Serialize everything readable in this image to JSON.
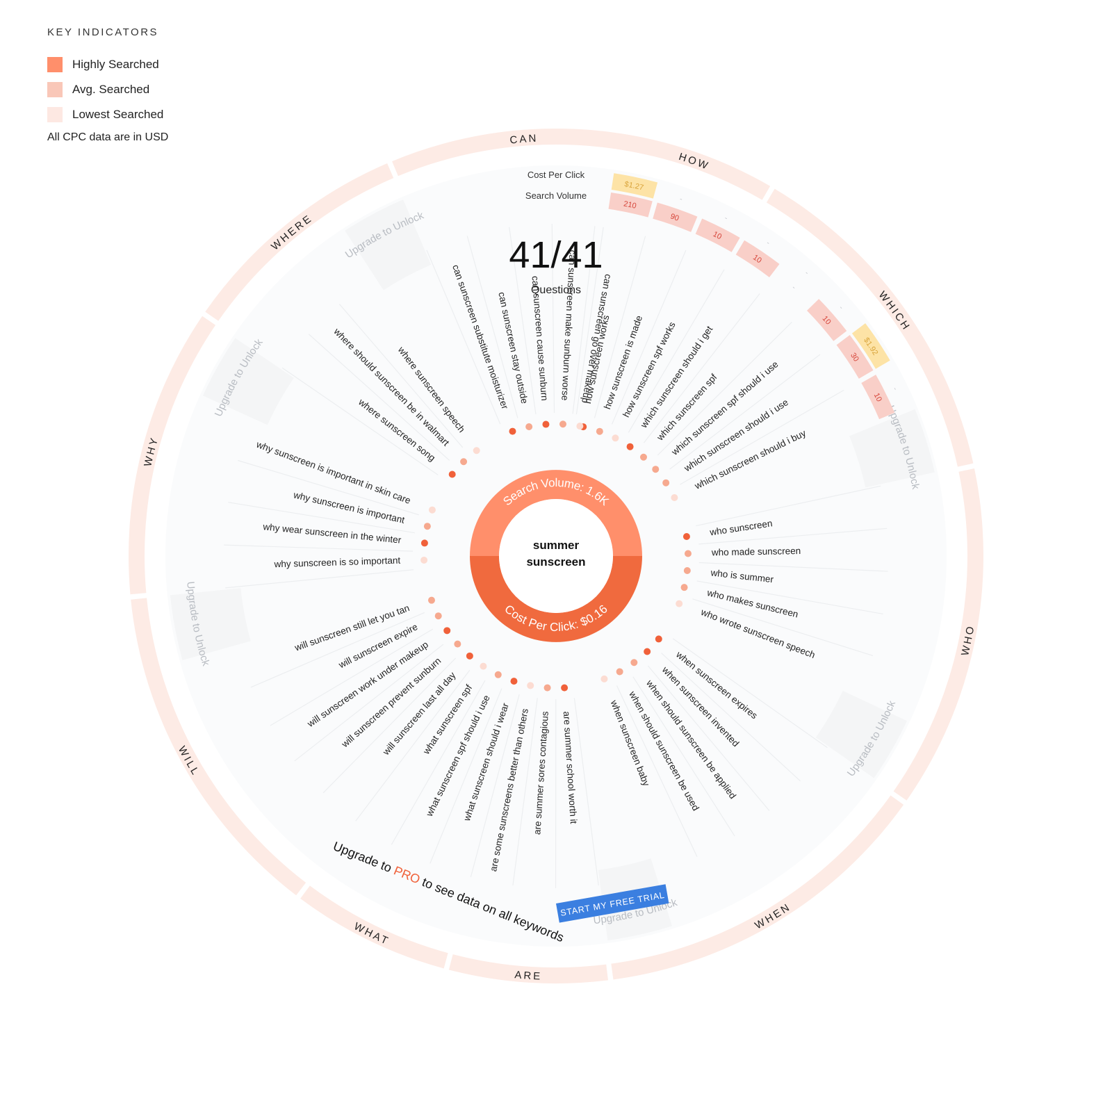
{
  "legend": {
    "title": "KEY INDICATORS",
    "items": [
      {
        "label": "Highly Searched",
        "color": "#ff8f6b"
      },
      {
        "label": "Avg. Searched",
        "color": "#f9c7b8"
      },
      {
        "label": "Lowest Searched",
        "color": "#fde8e2"
      }
    ],
    "note": "All CPC data are in USD"
  },
  "header": {
    "cpc_label": "Cost Per Click",
    "volume_label": "Search Volume",
    "count": "41/41",
    "count_label": "Questions"
  },
  "center": {
    "keyword_line1": "summer",
    "keyword_line2": "sunscreen",
    "search_volume_text": "Search Volume: ",
    "search_volume_value": "1.6K",
    "cpc_text": "Cost Per Click: ",
    "cpc_value": "$0.16"
  },
  "colors": {
    "high": "#ff8f6b",
    "avg": "#f9c7b8",
    "low": "#fde8e2",
    "dot_high": "#f0613a",
    "dot_avg": "#f6a98f",
    "dot_low": "#fcdcd2",
    "search_ring": "#ff8f6b",
    "cpc_ring": "#f06a3e",
    "category_ring": "#fdebe5",
    "cpc_badge": "#fde3a6",
    "cpc_badge_text": "#d9a43a",
    "volume_badge": "#f9cfc8",
    "volume_badge_text": "#d6453a",
    "pro": "#f0613a",
    "cta": "#3b7fe0"
  },
  "upgrade": {
    "prefix": "Upgrade to ",
    "pro": "PRO",
    "suffix": " to see data on all keywords",
    "button": "START MY FREE TRIAL",
    "unlock": "Upgrade to Unlock"
  },
  "categories": [
    {
      "name": "HOW",
      "questions": [
        {
          "text": "how sunscreen works",
          "volume": "210",
          "cpc": "$1.27",
          "level": "high"
        },
        {
          "text": "how sunscreen is made",
          "volume": "90",
          "cpc": "-",
          "level": "avg"
        },
        {
          "text": "how sunscreen spf works",
          "volume": "10",
          "cpc": "-",
          "level": "low"
        }
      ]
    },
    {
      "name": "WHICH",
      "questions": [
        {
          "text": "which sunscreen should i get",
          "volume": "10",
          "cpc": "-",
          "level": "high"
        },
        {
          "text": "which sunscreen spf",
          "volume": "-",
          "cpc": "-",
          "level": "avg"
        },
        {
          "text": "which sunscreen spf should i use",
          "volume": "10",
          "cpc": "-",
          "level": "avg"
        },
        {
          "text": "which sunscreen should i use",
          "volume": "30",
          "cpc": "$1.92",
          "level": "avg"
        },
        {
          "text": "which sunscreen should i buy",
          "volume": "10",
          "cpc": "-",
          "level": "low"
        }
      ]
    },
    {
      "name": "WHO",
      "questions": [
        {
          "text": "who sunscreen",
          "level": "high"
        },
        {
          "text": "who made sunscreen",
          "level": "avg"
        },
        {
          "text": "who is summer",
          "level": "avg"
        },
        {
          "text": "who makes sunscreen",
          "level": "avg"
        },
        {
          "text": "who wrote sunscreen speech",
          "level": "low"
        }
      ]
    },
    {
      "name": "WHEN",
      "questions": [
        {
          "text": "when sunscreen expires",
          "level": "high"
        },
        {
          "text": "when sunscreen invented",
          "level": "high"
        },
        {
          "text": "when should sunscreen be applied",
          "level": "avg"
        },
        {
          "text": "when should sunscreen be used",
          "level": "avg"
        },
        {
          "text": "when sunscreen baby",
          "level": "low"
        }
      ]
    },
    {
      "name": "ARE",
      "questions": [
        {
          "text": "are summer school worth it",
          "level": "high"
        },
        {
          "text": "are summer sores contagious",
          "level": "avg"
        },
        {
          "text": "are some sunscreens better than others",
          "level": "low"
        }
      ]
    },
    {
      "name": "WHAT",
      "questions": [
        {
          "text": "what sunscreen should i wear",
          "level": "high"
        },
        {
          "text": "what sunscreen spf should i use",
          "level": "avg"
        },
        {
          "text": "what sunscreen spf",
          "level": "low"
        }
      ]
    },
    {
      "name": "WILL",
      "questions": [
        {
          "text": "will sunscreen last all day",
          "level": "high"
        },
        {
          "text": "will sunscreen prevent sunburn",
          "level": "avg"
        },
        {
          "text": "will sunscreen work under makeup",
          "level": "high"
        },
        {
          "text": "will sunscreen expire",
          "level": "avg"
        },
        {
          "text": "will sunscreen still let you tan",
          "level": "avg"
        }
      ]
    },
    {
      "name": "WHY",
      "questions": [
        {
          "text": "why sunscreen is so important",
          "level": "low"
        },
        {
          "text": "why wear sunscreen in the winter",
          "level": "high"
        },
        {
          "text": "why sunscreen is important",
          "level": "avg"
        },
        {
          "text": "why sunscreen is important in skin care",
          "level": "low"
        }
      ]
    },
    {
      "name": "WHERE",
      "questions": [
        {
          "text": "where sunscreen song",
          "level": "high"
        },
        {
          "text": "where should sunscreen be in walmart",
          "level": "avg"
        },
        {
          "text": "where sunscreen speech",
          "level": "low"
        }
      ]
    },
    {
      "name": "CAN",
      "questions": [
        {
          "text": "can sunscreen substitute moisturizer",
          "level": "high"
        },
        {
          "text": "can sunscreen stay outside",
          "level": "avg"
        },
        {
          "text": "can sunscreen cause sunburn",
          "level": "high"
        },
        {
          "text": "can sunscreen make sunburn worse",
          "level": "avg"
        },
        {
          "text": "can sunscreen go over makeup",
          "level": "low"
        }
      ]
    }
  ]
}
